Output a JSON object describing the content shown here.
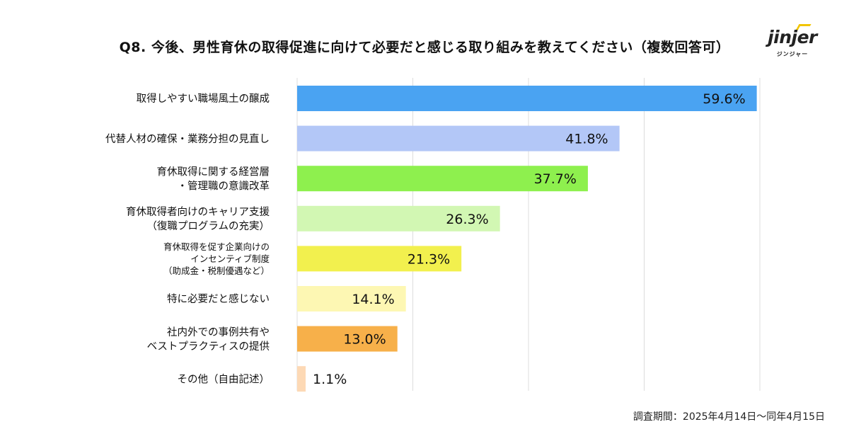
{
  "title": "Q8. 今後、男性育休の取得促進に向けて必要だと感じる取り組みを教えてください（複数回答可）",
  "logo": {
    "word": "jinjer",
    "sub": "ジンジャー"
  },
  "footnote": "調査期間：2025年4月14日〜同年4月15日",
  "chart_data": {
    "type": "bar",
    "orientation": "horizontal",
    "title": "Q8. 今後、男性育休の取得促進に向けて必要だと感じる取り組みを教えてください（複数回答可）",
    "xlabel": "",
    "ylabel": "",
    "unit": "%",
    "xlim": [
      0,
      60
    ],
    "grid": true,
    "categories": [
      [
        "取得しやすい職場風土の醸成"
      ],
      [
        "代替人材の確保・業務分担の見直し"
      ],
      [
        "育休取得に関する経営層",
        "・管理職の意識改革"
      ],
      [
        "育休取得者向けのキャリア支援",
        "（復職プログラムの充実）"
      ],
      [
        "育休取得を促す企業向けの",
        "インセンティブ制度",
        "（助成金・税制優遇など）"
      ],
      [
        "特に必要だと感じない"
      ],
      [
        "社内外での事例共有や",
        "ベストプラクティスの提供"
      ],
      [
        "その他（自由記述）"
      ]
    ],
    "values": [
      59.6,
      41.8,
      37.7,
      26.3,
      21.3,
      14.1,
      13.0,
      1.1
    ],
    "data_labels": [
      "59.6%",
      "41.8%",
      "37.7%",
      "26.3%",
      "21.3%",
      "14.1%",
      "13.0%",
      "1.1%"
    ],
    "colors": [
      "#4aa3f2",
      "#b3c7f7",
      "#8ef04e",
      "#d2f7b3",
      "#f2f04e",
      "#fdf7b3",
      "#f7b04a",
      "#fdd9b5"
    ]
  }
}
